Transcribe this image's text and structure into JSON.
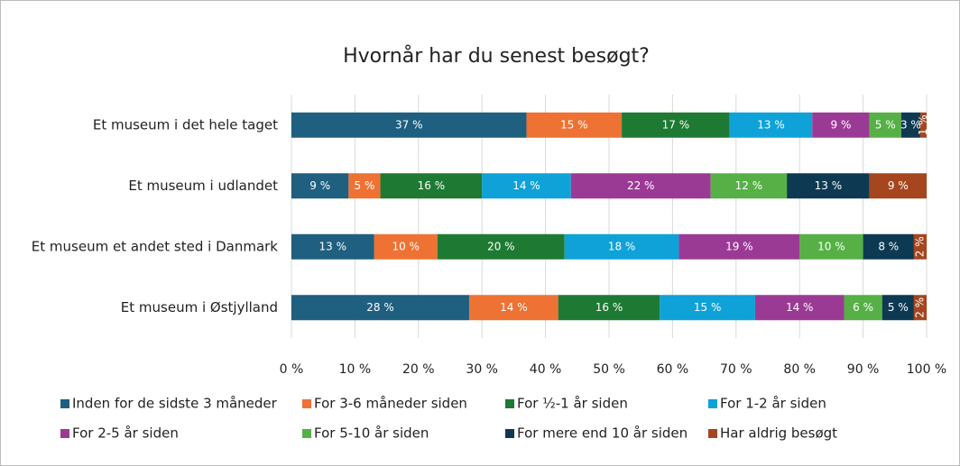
{
  "chart_data": {
    "type": "stacked-barh",
    "title": "Hvornår har du senest besøgt?",
    "categories": [
      "Et museum i det hele taget",
      "Et museum i udlandet",
      "Et museum et andet sted i Danmark",
      "Et museum i Østjylland"
    ],
    "series": [
      {
        "name": "Inden for de sidste 3 måneder",
        "color": "#1f5f80",
        "values": [
          37,
          9,
          13,
          28
        ],
        "value_labels": [
          "37 %",
          "9 %",
          "13 %",
          "28 %"
        ]
      },
      {
        "name": "For 3-6 måneder siden",
        "color": "#ed7234",
        "values": [
          15,
          5,
          10,
          14
        ],
        "value_labels": [
          "15 %",
          "5 %",
          "10 %",
          "14 %"
        ]
      },
      {
        "name": "For ½-1 år siden",
        "color": "#1e7a33",
        "values": [
          17,
          16,
          20,
          16
        ],
        "value_labels": [
          "17 %",
          "16 %",
          "20 %",
          "16 %"
        ]
      },
      {
        "name": "For 1-2 år siden",
        "color": "#0ea2d8",
        "values": [
          13,
          14,
          18,
          15
        ],
        "value_labels": [
          "13 %",
          "14 %",
          "18 %",
          "15 %"
        ]
      },
      {
        "name": "For 2-5 år siden",
        "color": "#9b3a94",
        "values": [
          9,
          22,
          19,
          14
        ],
        "value_labels": [
          "9 %",
          "22 %",
          "19 %",
          "14 %"
        ]
      },
      {
        "name": "For 5-10 år siden",
        "color": "#56b046",
        "values": [
          5,
          12,
          10,
          6
        ],
        "value_labels": [
          "5 %",
          "12 %",
          "10 %",
          "6 %"
        ]
      },
      {
        "name": "For mere end 10 år siden",
        "color": "#0d3a52",
        "values": [
          3,
          13,
          8,
          5
        ],
        "value_labels": [
          "3 %",
          "13 %",
          "8 %",
          "5 %"
        ]
      },
      {
        "name": "Har aldrig besøgt",
        "color": "#a5461f",
        "values": [
          1,
          9,
          2,
          2
        ],
        "value_labels": [
          "1 %",
          "9 %",
          "2 %",
          "2 %"
        ]
      }
    ],
    "xlim": [
      0,
      100
    ],
    "xticks": [
      {
        "value": 0,
        "label": "0 %"
      },
      {
        "value": 10,
        "label": "10 %"
      },
      {
        "value": 20,
        "label": "20 %"
      },
      {
        "value": 30,
        "label": "30 %"
      },
      {
        "value": 40,
        "label": "40 %"
      },
      {
        "value": 50,
        "label": "50 %"
      },
      {
        "value": 60,
        "label": "60 %"
      },
      {
        "value": 70,
        "label": "70 %"
      },
      {
        "value": 80,
        "label": "80 %"
      },
      {
        "value": 90,
        "label": "90 %"
      },
      {
        "value": 100,
        "label": "100 %"
      }
    ],
    "grid": true,
    "legend": "bottom"
  }
}
